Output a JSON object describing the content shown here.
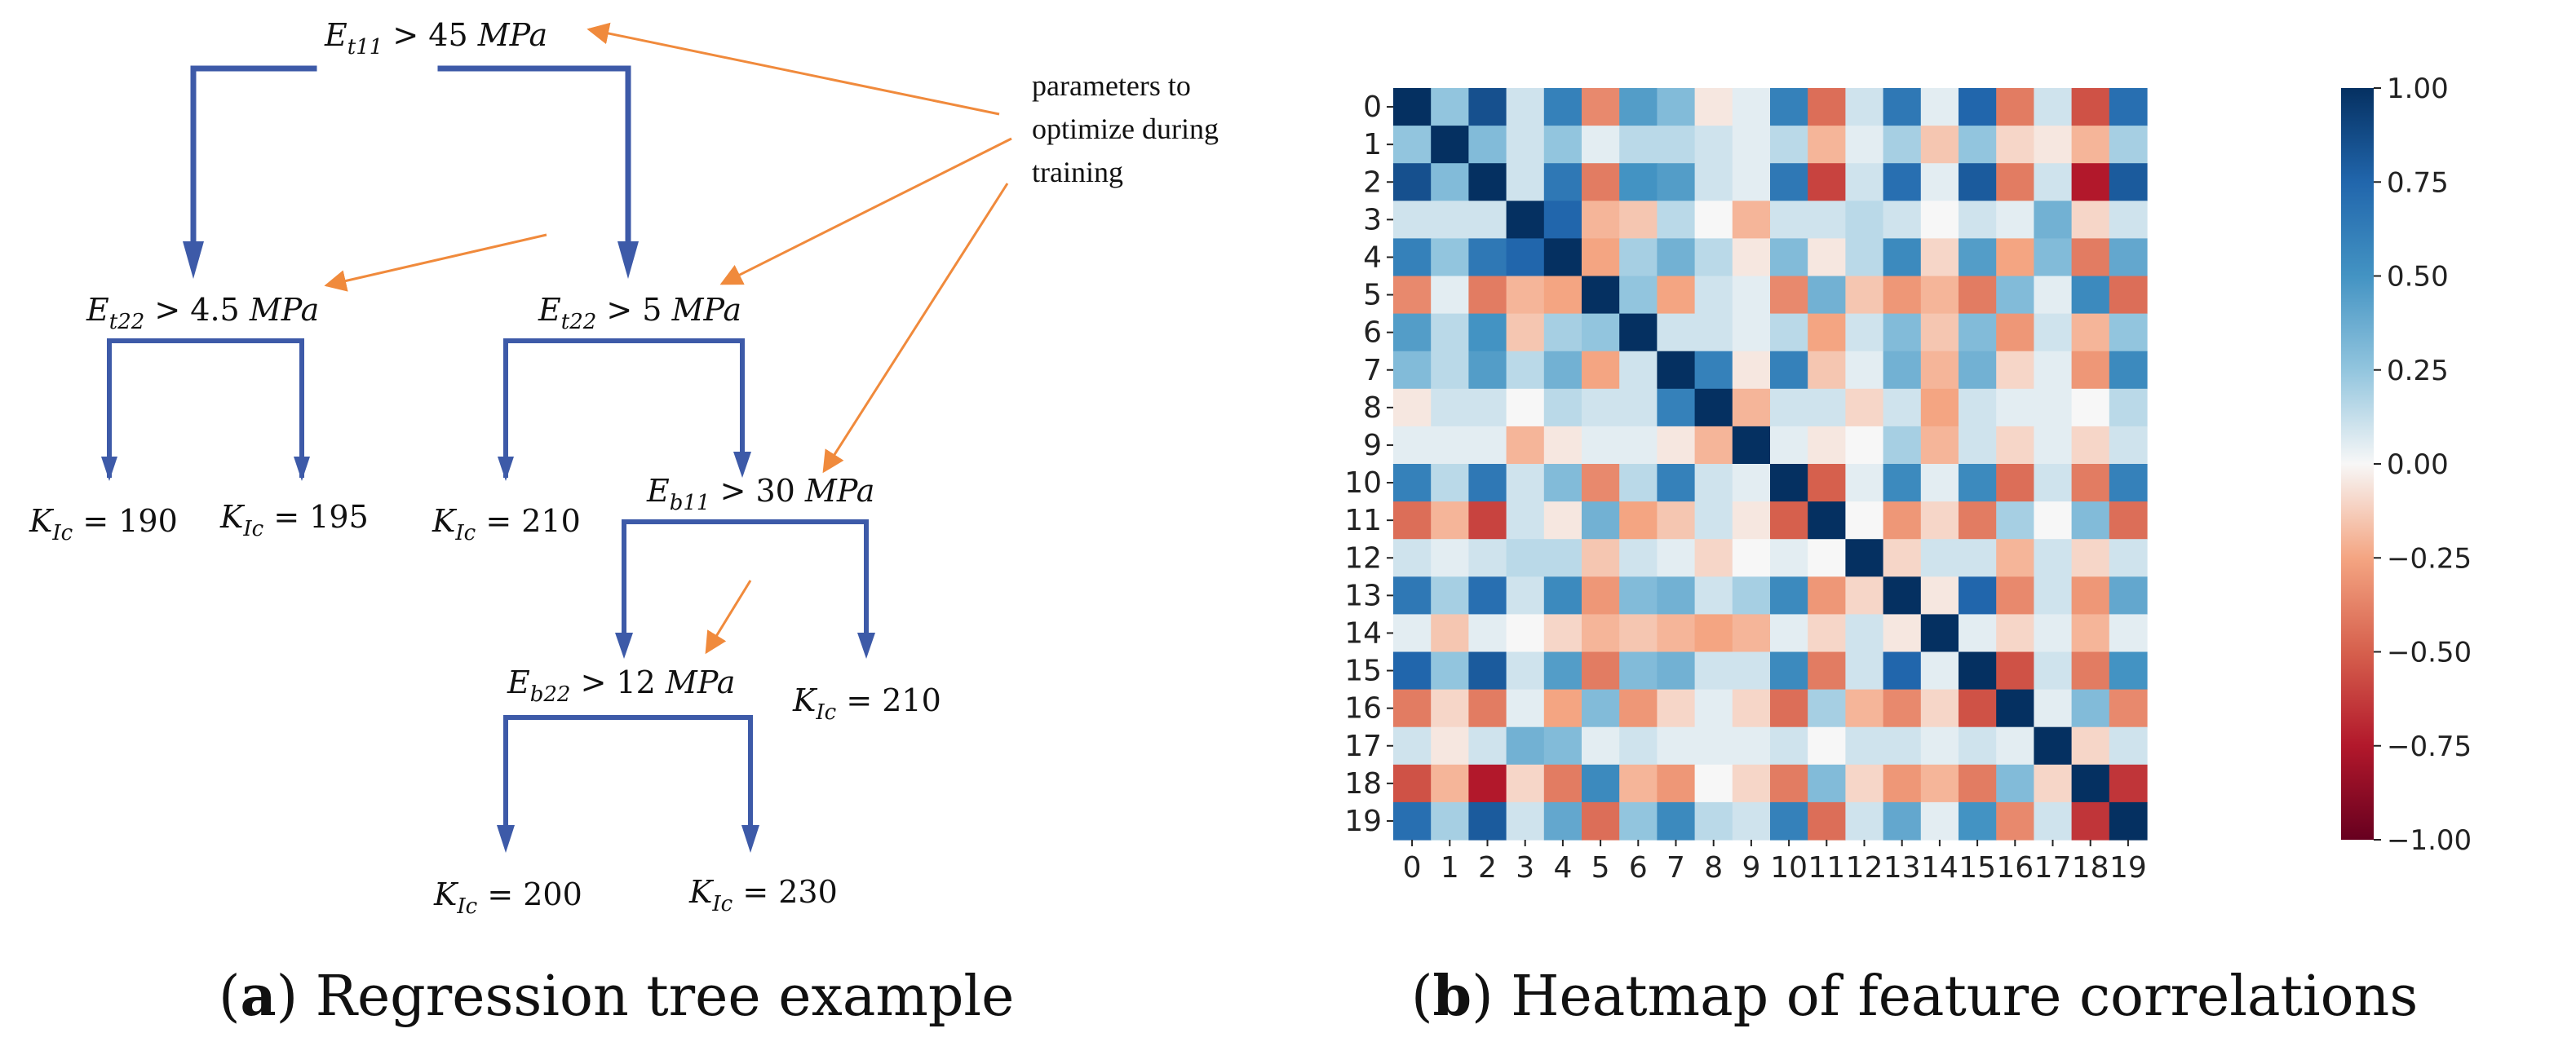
{
  "panel_a": {
    "caption_letter": "a",
    "caption_paren_open": "(",
    "caption_paren_close": ")",
    "caption_text": " Regression tree example",
    "annotation_lines": [
      "parameters to",
      "optimize during",
      "training"
    ],
    "nodes": [
      {
        "id": "root",
        "var": "E",
        "sub": "t11",
        "op": " > 45 ",
        "unit": "MPa"
      },
      {
        "id": "left",
        "var": "E",
        "sub": "t22",
        "op": " > 4.5 ",
        "unit": "MPa"
      },
      {
        "id": "right",
        "var": "E",
        "sub": "t22",
        "op": " > 5 ",
        "unit": "MPa"
      },
      {
        "id": "rr",
        "var": "E",
        "sub": "b11",
        "op": " > 30 ",
        "unit": "MPa"
      },
      {
        "id": "rrl",
        "var": "E",
        "sub": "b22",
        "op": " > 12 ",
        "unit": "MPa"
      }
    ],
    "leaves": [
      {
        "id": "leaf1",
        "var": "K",
        "sub": "Ic",
        "value": " = 190"
      },
      {
        "id": "leaf2",
        "var": "K",
        "sub": "Ic",
        "value": " = 195"
      },
      {
        "id": "leaf3",
        "var": "K",
        "sub": "Ic",
        "value": " = 210"
      },
      {
        "id": "leaf4",
        "var": "K",
        "sub": "Ic",
        "value": " = 210"
      },
      {
        "id": "leaf5",
        "var": "K",
        "sub": "Ic",
        "value": " = 200"
      },
      {
        "id": "leaf6",
        "var": "K",
        "sub": "Ic",
        "value": " = 230"
      }
    ],
    "colors": {
      "tree": "#3d5aa8",
      "annotation": "#f08a3c"
    }
  },
  "panel_b": {
    "caption_letter": "b",
    "caption_paren_open": "(",
    "caption_paren_close": ")",
    "caption_text": " Heatmap of feature correlations"
  },
  "chart_data": {
    "type": "heatmap",
    "title": "",
    "xlabel": "",
    "ylabel": "",
    "x_categories": [
      "0",
      "1",
      "2",
      "3",
      "4",
      "5",
      "6",
      "7",
      "8",
      "9",
      "10",
      "11",
      "12",
      "13",
      "14",
      "15",
      "16",
      "17",
      "18",
      "19"
    ],
    "y_categories": [
      "0",
      "1",
      "2",
      "3",
      "4",
      "5",
      "6",
      "7",
      "8",
      "9",
      "10",
      "11",
      "12",
      "13",
      "14",
      "15",
      "16",
      "17",
      "18",
      "19"
    ],
    "value_range": [
      -1.0,
      1.0
    ],
    "colormap": "RdBu",
    "colorbar_ticks": [
      "1.00",
      "0.75",
      "0.50",
      "0.25",
      "0.00",
      "−0.25",
      "−0.50",
      "−0.75",
      "−1.00"
    ],
    "colorbar_tick_values": [
      1.0,
      0.75,
      0.5,
      0.25,
      0.0,
      -0.25,
      -0.5,
      -0.75,
      -1.0
    ],
    "matrix": [
      [
        1.0,
        0.25,
        0.85,
        0.1,
        0.6,
        -0.35,
        0.45,
        0.3,
        -0.05,
        0.05,
        0.6,
        -0.45,
        0.1,
        0.65,
        0.05,
        0.75,
        -0.4,
        0.1,
        -0.55,
        0.7
      ],
      [
        0.25,
        1.0,
        0.3,
        0.1,
        0.25,
        0.05,
        0.15,
        0.15,
        0.1,
        0.05,
        0.15,
        -0.2,
        0.05,
        0.2,
        -0.15,
        0.25,
        -0.1,
        -0.05,
        -0.2,
        0.2
      ],
      [
        0.85,
        0.3,
        1.0,
        0.1,
        0.65,
        -0.4,
        0.5,
        0.45,
        0.1,
        0.05,
        0.65,
        -0.6,
        0.1,
        0.7,
        0.05,
        0.8,
        -0.4,
        0.1,
        -0.75,
        0.8
      ],
      [
        0.1,
        0.1,
        0.1,
        1.0,
        0.75,
        -0.2,
        -0.15,
        0.15,
        0.0,
        -0.2,
        0.1,
        0.1,
        0.15,
        0.1,
        0.0,
        0.1,
        0.05,
        0.35,
        -0.1,
        0.1
      ],
      [
        0.6,
        0.25,
        0.65,
        0.75,
        1.0,
        -0.25,
        0.2,
        0.35,
        0.15,
        -0.05,
        0.3,
        -0.05,
        0.15,
        0.55,
        -0.1,
        0.45,
        -0.25,
        0.3,
        -0.4,
        0.4
      ],
      [
        -0.35,
        0.05,
        -0.4,
        -0.2,
        -0.25,
        1.0,
        0.25,
        -0.25,
        0.1,
        0.05,
        -0.35,
        0.35,
        -0.15,
        -0.3,
        -0.2,
        -0.4,
        0.3,
        0.05,
        0.55,
        -0.45
      ],
      [
        0.45,
        0.15,
        0.5,
        -0.15,
        0.2,
        0.25,
        1.0,
        0.1,
        0.1,
        0.05,
        0.15,
        -0.25,
        0.1,
        0.3,
        -0.15,
        0.3,
        -0.3,
        0.1,
        -0.2,
        0.25
      ],
      [
        0.3,
        0.15,
        0.45,
        0.15,
        0.35,
        -0.25,
        0.1,
        1.0,
        0.6,
        -0.05,
        0.6,
        -0.15,
        0.05,
        0.35,
        -0.2,
        0.35,
        -0.1,
        0.05,
        -0.3,
        0.55
      ],
      [
        -0.05,
        0.1,
        0.1,
        0.0,
        0.15,
        0.1,
        0.1,
        0.6,
        1.0,
        -0.2,
        0.1,
        0.1,
        -0.1,
        0.1,
        -0.25,
        0.1,
        0.05,
        0.05,
        0.0,
        0.15
      ],
      [
        0.05,
        0.05,
        0.05,
        -0.2,
        -0.05,
        0.05,
        0.05,
        -0.05,
        -0.2,
        1.0,
        0.05,
        -0.05,
        0.0,
        0.2,
        -0.2,
        0.1,
        -0.1,
        0.05,
        -0.1,
        0.1
      ],
      [
        0.6,
        0.15,
        0.65,
        0.1,
        0.3,
        -0.35,
        0.15,
        0.6,
        0.1,
        0.05,
        1.0,
        -0.5,
        0.05,
        0.55,
        0.05,
        0.55,
        -0.45,
        0.1,
        -0.4,
        0.6
      ],
      [
        -0.45,
        -0.2,
        -0.6,
        0.1,
        -0.05,
        0.35,
        -0.25,
        -0.15,
        0.1,
        -0.05,
        -0.5,
        1.0,
        0.0,
        -0.3,
        -0.1,
        -0.4,
        0.2,
        0.0,
        0.3,
        -0.45
      ],
      [
        0.1,
        0.05,
        0.1,
        0.15,
        0.15,
        -0.15,
        0.1,
        0.05,
        -0.1,
        0.0,
        0.05,
        0.0,
        1.0,
        -0.1,
        0.1,
        0.1,
        -0.2,
        0.1,
        -0.1,
        0.1
      ],
      [
        0.65,
        0.2,
        0.7,
        0.1,
        0.55,
        -0.3,
        0.3,
        0.35,
        0.1,
        0.2,
        0.55,
        -0.3,
        -0.1,
        1.0,
        -0.05,
        0.75,
        -0.35,
        0.1,
        -0.3,
        0.4
      ],
      [
        0.05,
        -0.15,
        0.05,
        0.0,
        -0.1,
        -0.2,
        -0.15,
        -0.2,
        -0.25,
        -0.2,
        0.05,
        -0.1,
        0.1,
        -0.05,
        1.0,
        0.05,
        -0.1,
        0.05,
        -0.2,
        0.05
      ],
      [
        0.75,
        0.25,
        0.8,
        0.1,
        0.45,
        -0.4,
        0.3,
        0.35,
        0.1,
        0.1,
        0.55,
        -0.4,
        0.1,
        0.75,
        0.05,
        1.0,
        -0.55,
        0.1,
        -0.4,
        0.5
      ],
      [
        -0.4,
        -0.1,
        -0.4,
        0.05,
        -0.25,
        0.3,
        -0.3,
        -0.1,
        0.05,
        -0.1,
        -0.45,
        0.2,
        -0.2,
        -0.35,
        -0.1,
        -0.55,
        1.0,
        0.05,
        0.3,
        -0.35
      ],
      [
        0.1,
        -0.05,
        0.1,
        0.35,
        0.3,
        0.05,
        0.1,
        0.05,
        0.05,
        0.05,
        0.1,
        0.0,
        0.1,
        0.1,
        0.05,
        0.1,
        0.05,
        1.0,
        -0.1,
        0.1
      ],
      [
        -0.55,
        -0.2,
        -0.75,
        -0.1,
        -0.4,
        0.55,
        -0.2,
        -0.3,
        0.0,
        -0.1,
        -0.4,
        0.3,
        -0.1,
        -0.3,
        -0.2,
        -0.4,
        0.3,
        -0.1,
        1.0,
        -0.65
      ],
      [
        0.7,
        0.2,
        0.8,
        0.1,
        0.4,
        -0.45,
        0.25,
        0.55,
        0.15,
        0.1,
        0.6,
        -0.45,
        0.1,
        0.4,
        0.05,
        0.5,
        -0.35,
        0.1,
        -0.65,
        1.0
      ]
    ]
  }
}
